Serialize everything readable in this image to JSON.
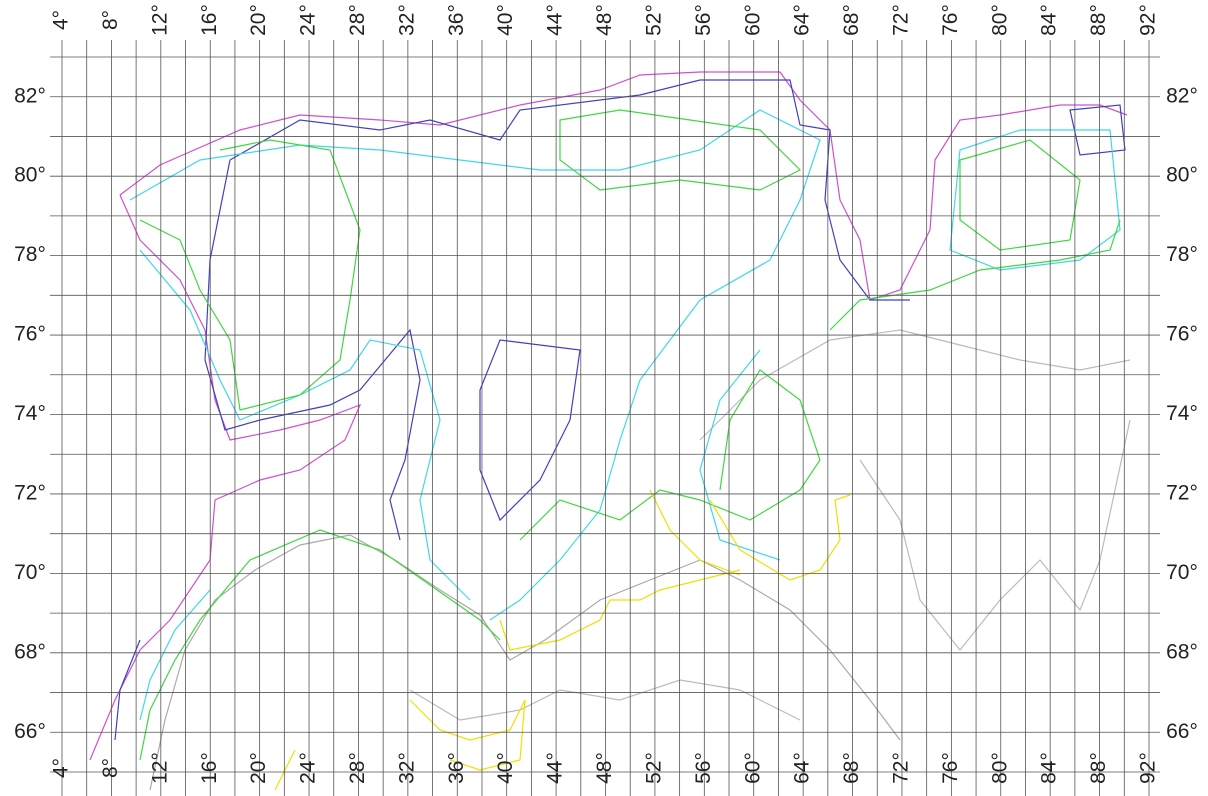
{
  "map": {
    "lonlim": [
      4,
      92
    ],
    "latlim": [
      65,
      83
    ],
    "grid_lines": {
      "lon": [
        4,
        6,
        8,
        10,
        12,
        14,
        16,
        18,
        20,
        22,
        24,
        26,
        28,
        30,
        32,
        34,
        36,
        38,
        40,
        42,
        44,
        46,
        48,
        50,
        52,
        54,
        56,
        58,
        60,
        62,
        64,
        66,
        68,
        70,
        72,
        74,
        76,
        78,
        80,
        82,
        84,
        86,
        88,
        90,
        92
      ],
      "lat": [
        65,
        66,
        67,
        68,
        69,
        70,
        71,
        72,
        73,
        74,
        75,
        76,
        77,
        78,
        79,
        80,
        81,
        82,
        83
      ]
    },
    "lon_ticks": [
      {
        "value": 4,
        "label": "4°"
      },
      {
        "value": 8,
        "label": "8°"
      },
      {
        "value": 12,
        "label": "12°"
      },
      {
        "value": 16,
        "label": "16°"
      },
      {
        "value": 20,
        "label": "20°"
      },
      {
        "value": 24,
        "label": "24°"
      },
      {
        "value": 28,
        "label": "28°"
      },
      {
        "value": 32,
        "label": "32°"
      },
      {
        "value": 36,
        "label": "36°"
      },
      {
        "value": 40,
        "label": "40°"
      },
      {
        "value": 44,
        "label": "44°"
      },
      {
        "value": 48,
        "label": "48°"
      },
      {
        "value": 52,
        "label": "52°"
      },
      {
        "value": 56,
        "label": "56°"
      },
      {
        "value": 60,
        "label": "60°"
      },
      {
        "value": 64,
        "label": "64°"
      },
      {
        "value": 68,
        "label": "68°"
      },
      {
        "value": 72,
        "label": "72°"
      },
      {
        "value": 76,
        "label": "76°"
      },
      {
        "value": 80,
        "label": "80°"
      },
      {
        "value": 84,
        "label": "84°"
      },
      {
        "value": 88,
        "label": "88°"
      },
      {
        "value": 92,
        "label": "92°"
      }
    ],
    "lat_ticks": [
      {
        "value": 66,
        "label": "66°"
      },
      {
        "value": 68,
        "label": "68°"
      },
      {
        "value": 70,
        "label": "70°"
      },
      {
        "value": 72,
        "label": "72°"
      },
      {
        "value": 74,
        "label": "74°"
      },
      {
        "value": 76,
        "label": "76°"
      },
      {
        "value": 78,
        "label": "78°"
      },
      {
        "value": 80,
        "label": "80°"
      },
      {
        "value": 82,
        "label": "82°"
      }
    ]
  }
}
